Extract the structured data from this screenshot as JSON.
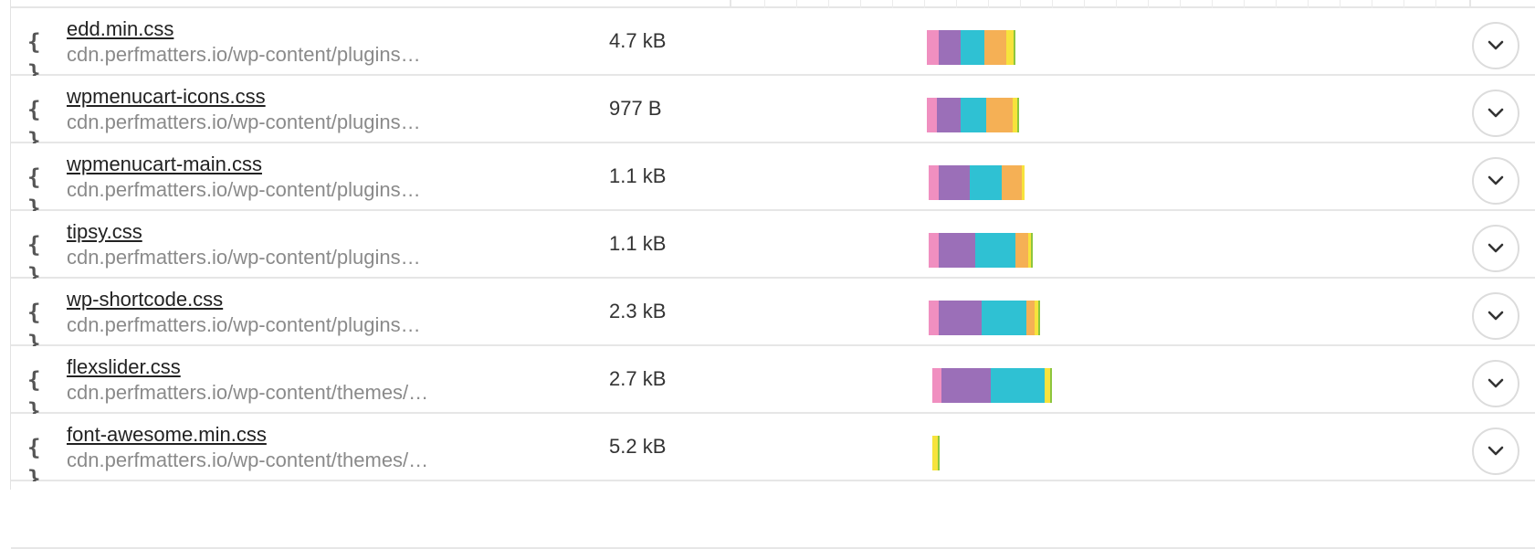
{
  "colors": {
    "dns": "#f08fc0",
    "connect": "#9b6fb8",
    "ssl": "#2fc1d3",
    "wait": "#f5b055",
    "receive": "#f7e33c",
    "tail": "#8cc63f"
  },
  "rows": [
    {
      "icon": "css-file-icon",
      "glyph": "{ }",
      "name": "edd.min.css",
      "url": "cdn.perfmatters.io/wp-content/plugins…",
      "size": "4.7 kB",
      "timing": [
        0,
        13,
        24,
        26,
        24,
        8,
        2
      ]
    },
    {
      "icon": "css-file-icon",
      "glyph": "{ }",
      "name": "wpmenucart-icons.css",
      "url": "cdn.perfmatters.io/wp-content/plugins…",
      "size": "977 B",
      "timing": [
        0,
        11,
        26,
        28,
        29,
        5,
        2
      ]
    },
    {
      "icon": "css-file-icon",
      "glyph": "{ }",
      "name": "wpmenucart-main.css",
      "url": "cdn.perfmatters.io/wp-content/plugins…",
      "size": "1.1 kB",
      "timing": [
        2,
        11,
        34,
        35,
        22,
        3,
        0
      ]
    },
    {
      "icon": "css-file-icon",
      "glyph": "{ }",
      "name": "tipsy.css",
      "url": "cdn.perfmatters.io/wp-content/plugins…",
      "size": "1.1 kB",
      "timing": [
        2,
        11,
        40,
        44,
        14,
        3,
        2
      ]
    },
    {
      "icon": "css-file-icon",
      "glyph": "{ }",
      "name": "wp-shortcode.css",
      "url": "cdn.perfmatters.io/wp-content/plugins…",
      "size": "2.3 kB",
      "timing": [
        2,
        11,
        47,
        49,
        9,
        4,
        2
      ]
    },
    {
      "icon": "css-file-icon",
      "glyph": "{ }",
      "name": "flexslider.css",
      "url": "cdn.perfmatters.io/wp-content/themes/…",
      "size": "2.7 kB",
      "timing": [
        6,
        10,
        54,
        59,
        0,
        6,
        2
      ]
    },
    {
      "icon": "css-file-icon",
      "glyph": "{ }",
      "name": "font-awesome.min.css",
      "url": "cdn.perfmatters.io/wp-content/themes/…",
      "size": "5.2 kB",
      "timing": [
        6,
        0,
        0,
        0,
        0,
        6,
        2
      ]
    }
  ],
  "expand_icon": "chevron-down-icon"
}
